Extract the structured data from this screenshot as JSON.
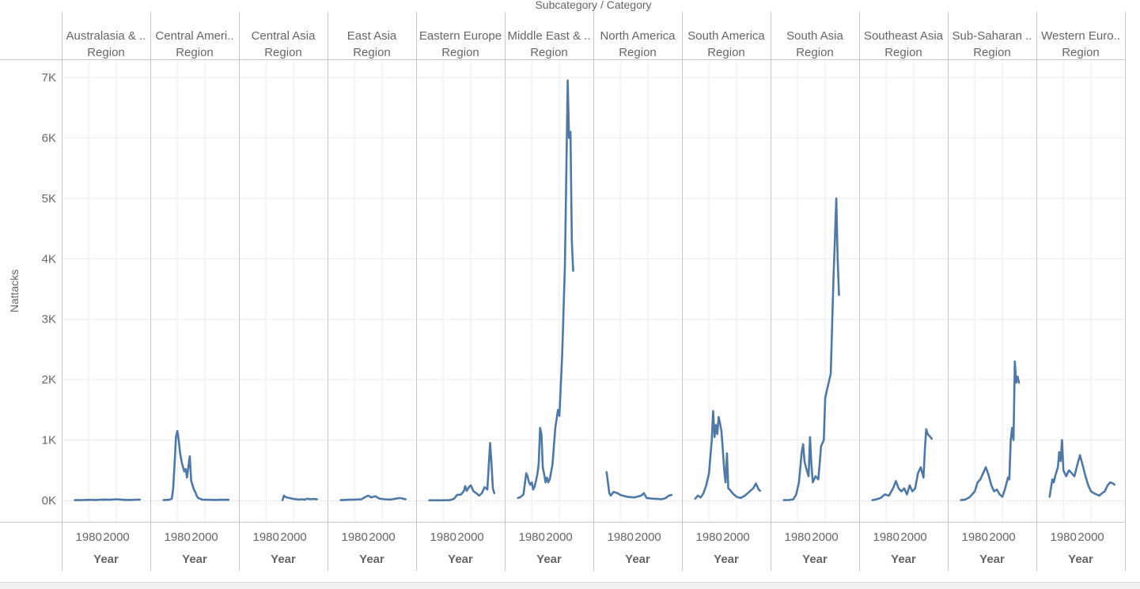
{
  "colors": {
    "line": "#4e79a7",
    "grid": "#ebebeb",
    "divider": "#c8c8c8",
    "zero_line": "#cccccc",
    "text": "#666666"
  },
  "chart_data": {
    "type": "line",
    "title": "Subcategory / Category",
    "ylabel": "Nattacks",
    "xlabel": "Year",
    "panel_sublabel": "Region",
    "ylim": [
      0,
      7000
    ],
    "y_ticks": [
      0,
      1000,
      2000,
      3000,
      4000,
      5000,
      6000,
      7000
    ],
    "y_tick_labels": [
      "0K",
      "1K",
      "2K",
      "3K",
      "4K",
      "5K",
      "6K",
      "7K"
    ],
    "x_range": [
      1965,
      2020
    ],
    "x_ticks": [
      1980,
      2000
    ],
    "x_tick_labels": [
      "1980",
      "2000"
    ],
    "grid": true,
    "series": [
      {
        "name": "Australasia & ..",
        "points": [
          [
            1970,
            5
          ],
          [
            1975,
            6
          ],
          [
            1980,
            10
          ],
          [
            1985,
            8
          ],
          [
            1990,
            15
          ],
          [
            1995,
            12
          ],
          [
            2000,
            20
          ],
          [
            2005,
            10
          ],
          [
            2010,
            8
          ],
          [
            2014,
            12
          ],
          [
            2017,
            14
          ]
        ]
      },
      {
        "name": "Central Ameri..",
        "points": [
          [
            1970,
            5
          ],
          [
            1974,
            10
          ],
          [
            1976,
            30
          ],
          [
            1977,
            200
          ],
          [
            1978,
            600
          ],
          [
            1979,
            1050
          ],
          [
            1980,
            1150
          ],
          [
            1981,
            1000
          ],
          [
            1982,
            780
          ],
          [
            1983,
            650
          ],
          [
            1984,
            560
          ],
          [
            1985,
            480
          ],
          [
            1986,
            520
          ],
          [
            1987,
            380
          ],
          [
            1988,
            560
          ],
          [
            1989,
            730
          ],
          [
            1990,
            330
          ],
          [
            1991,
            250
          ],
          [
            1992,
            180
          ],
          [
            1993,
            140
          ],
          [
            1994,
            80
          ],
          [
            1995,
            40
          ],
          [
            1998,
            15
          ],
          [
            2003,
            10
          ],
          [
            2008,
            8
          ],
          [
            2012,
            12
          ],
          [
            2017,
            10
          ]
        ]
      },
      {
        "name": "Central Asia",
        "points": [
          [
            1992,
            5
          ],
          [
            1993,
            80
          ],
          [
            1994,
            60
          ],
          [
            1996,
            45
          ],
          [
            1998,
            35
          ],
          [
            2000,
            25
          ],
          [
            2002,
            20
          ],
          [
            2004,
            15
          ],
          [
            2006,
            20
          ],
          [
            2008,
            15
          ],
          [
            2010,
            30
          ],
          [
            2012,
            20
          ],
          [
            2015,
            25
          ],
          [
            2017,
            20
          ]
        ]
      },
      {
        "name": "East Asia",
        "points": [
          [
            1970,
            5
          ],
          [
            1975,
            10
          ],
          [
            1980,
            15
          ],
          [
            1985,
            20
          ],
          [
            1988,
            60
          ],
          [
            1990,
            80
          ],
          [
            1992,
            50
          ],
          [
            1995,
            70
          ],
          [
            1998,
            30
          ],
          [
            2002,
            20
          ],
          [
            2006,
            15
          ],
          [
            2010,
            30
          ],
          [
            2013,
            40
          ],
          [
            2017,
            20
          ]
        ]
      },
      {
        "name": "Eastern Europe",
        "points": [
          [
            1970,
            2
          ],
          [
            1975,
            2
          ],
          [
            1980,
            3
          ],
          [
            1985,
            5
          ],
          [
            1988,
            30
          ],
          [
            1990,
            90
          ],
          [
            1993,
            100
          ],
          [
            1995,
            160
          ],
          [
            1996,
            240
          ],
          [
            1997,
            160
          ],
          [
            1999,
            230
          ],
          [
            2000,
            250
          ],
          [
            2002,
            150
          ],
          [
            2004,
            120
          ],
          [
            2006,
            80
          ],
          [
            2008,
            120
          ],
          [
            2010,
            220
          ],
          [
            2012,
            180
          ],
          [
            2014,
            950
          ],
          [
            2015,
            600
          ],
          [
            2016,
            200
          ],
          [
            2017,
            120
          ]
        ]
      },
      {
        "name": "Middle East & ..",
        "points": [
          [
            1970,
            40
          ],
          [
            1972,
            60
          ],
          [
            1974,
            100
          ],
          [
            1975,
            280
          ],
          [
            1976,
            450
          ],
          [
            1977,
            400
          ],
          [
            1978,
            300
          ],
          [
            1979,
            260
          ],
          [
            1980,
            300
          ],
          [
            1981,
            180
          ],
          [
            1982,
            230
          ],
          [
            1983,
            320
          ],
          [
            1984,
            430
          ],
          [
            1985,
            600
          ],
          [
            1986,
            1200
          ],
          [
            1987,
            1100
          ],
          [
            1988,
            550
          ],
          [
            1989,
            430
          ],
          [
            1990,
            300
          ],
          [
            1991,
            380
          ],
          [
            1992,
            300
          ],
          [
            1993,
            350
          ],
          [
            1995,
            600
          ],
          [
            1997,
            1200
          ],
          [
            1999,
            1500
          ],
          [
            2000,
            1400
          ],
          [
            2002,
            2400
          ],
          [
            2004,
            3900
          ],
          [
            2006,
            6950
          ],
          [
            2007,
            6000
          ],
          [
            2008,
            6100
          ],
          [
            2009,
            4300
          ],
          [
            2010,
            3800
          ]
        ]
      },
      {
        "name": "North America",
        "points": [
          [
            1970,
            470
          ],
          [
            1971,
            300
          ],
          [
            1972,
            120
          ],
          [
            1973,
            80
          ],
          [
            1975,
            140
          ],
          [
            1978,
            120
          ],
          [
            1980,
            90
          ],
          [
            1985,
            60
          ],
          [
            1990,
            50
          ],
          [
            1995,
            80
          ],
          [
            1997,
            120
          ],
          [
            1999,
            40
          ],
          [
            2003,
            30
          ],
          [
            2007,
            25
          ],
          [
            2010,
            20
          ],
          [
            2013,
            40
          ],
          [
            2015,
            80
          ],
          [
            2017,
            90
          ]
        ]
      },
      {
        "name": "South America",
        "points": [
          [
            1970,
            30
          ],
          [
            1972,
            80
          ],
          [
            1974,
            50
          ],
          [
            1976,
            120
          ],
          [
            1978,
            250
          ],
          [
            1980,
            450
          ],
          [
            1982,
            1000
          ],
          [
            1983,
            1480
          ],
          [
            1984,
            1050
          ],
          [
            1985,
            1250
          ],
          [
            1986,
            1100
          ],
          [
            1987,
            1380
          ],
          [
            1988,
            1280
          ],
          [
            1989,
            1150
          ],
          [
            1990,
            850
          ],
          [
            1991,
            500
          ],
          [
            1992,
            300
          ],
          [
            1993,
            780
          ],
          [
            1994,
            200
          ],
          [
            1995,
            180
          ],
          [
            1997,
            120
          ],
          [
            2000,
            60
          ],
          [
            2003,
            40
          ],
          [
            2006,
            80
          ],
          [
            2009,
            140
          ],
          [
            2012,
            200
          ],
          [
            2014,
            280
          ],
          [
            2016,
            180
          ],
          [
            2017,
            160
          ]
        ]
      },
      {
        "name": "South Asia",
        "points": [
          [
            1970,
            5
          ],
          [
            1974,
            8
          ],
          [
            1977,
            20
          ],
          [
            1979,
            100
          ],
          [
            1981,
            300
          ],
          [
            1983,
            800
          ],
          [
            1984,
            930
          ],
          [
            1985,
            650
          ],
          [
            1986,
            550
          ],
          [
            1988,
            400
          ],
          [
            1989,
            1050
          ],
          [
            1990,
            600
          ],
          [
            1991,
            300
          ],
          [
            1993,
            400
          ],
          [
            1995,
            350
          ],
          [
            1997,
            900
          ],
          [
            1999,
            1000
          ],
          [
            2000,
            1700
          ],
          [
            2002,
            1900
          ],
          [
            2004,
            2100
          ],
          [
            2006,
            3700
          ],
          [
            2007,
            4300
          ],
          [
            2008,
            5000
          ],
          [
            2009,
            4000
          ],
          [
            2010,
            3400
          ]
        ]
      },
      {
        "name": "Southeast Asia",
        "points": [
          [
            1970,
            5
          ],
          [
            1973,
            20
          ],
          [
            1976,
            40
          ],
          [
            1979,
            100
          ],
          [
            1982,
            80
          ],
          [
            1985,
            200
          ],
          [
            1987,
            320
          ],
          [
            1989,
            200
          ],
          [
            1991,
            150
          ],
          [
            1993,
            200
          ],
          [
            1995,
            100
          ],
          [
            1997,
            250
          ],
          [
            1999,
            150
          ],
          [
            2001,
            200
          ],
          [
            2003,
            450
          ],
          [
            2005,
            550
          ],
          [
            2007,
            380
          ],
          [
            2008,
            850
          ],
          [
            2009,
            1180
          ],
          [
            2010,
            1100
          ],
          [
            2012,
            1050
          ],
          [
            2013,
            1020
          ]
        ]
      },
      {
        "name": "Sub-Saharan ..",
        "points": [
          [
            1970,
            5
          ],
          [
            1973,
            15
          ],
          [
            1976,
            50
          ],
          [
            1978,
            100
          ],
          [
            1980,
            150
          ],
          [
            1982,
            300
          ],
          [
            1984,
            350
          ],
          [
            1986,
            450
          ],
          [
            1988,
            550
          ],
          [
            1990,
            420
          ],
          [
            1992,
            250
          ],
          [
            1994,
            150
          ],
          [
            1996,
            180
          ],
          [
            1998,
            100
          ],
          [
            2000,
            60
          ],
          [
            2002,
            200
          ],
          [
            2004,
            380
          ],
          [
            2005,
            350
          ],
          [
            2006,
            1000
          ],
          [
            2007,
            1200
          ],
          [
            2008,
            1000
          ],
          [
            2009,
            2300
          ],
          [
            2010,
            1950
          ],
          [
            2011,
            2050
          ],
          [
            2012,
            1950
          ]
        ]
      },
      {
        "name": "Western Euro..",
        "points": [
          [
            1970,
            60
          ],
          [
            1972,
            350
          ],
          [
            1973,
            300
          ],
          [
            1974,
            400
          ],
          [
            1976,
            550
          ],
          [
            1977,
            800
          ],
          [
            1978,
            650
          ],
          [
            1979,
            1000
          ],
          [
            1980,
            500
          ],
          [
            1982,
            400
          ],
          [
            1984,
            500
          ],
          [
            1986,
            450
          ],
          [
            1988,
            400
          ],
          [
            1990,
            580
          ],
          [
            1992,
            750
          ],
          [
            1994,
            580
          ],
          [
            1996,
            400
          ],
          [
            1998,
            250
          ],
          [
            2000,
            150
          ],
          [
            2002,
            120
          ],
          [
            2004,
            100
          ],
          [
            2006,
            80
          ],
          [
            2008,
            120
          ],
          [
            2010,
            150
          ],
          [
            2012,
            250
          ],
          [
            2014,
            300
          ],
          [
            2016,
            280
          ],
          [
            2017,
            260
          ]
        ]
      }
    ]
  }
}
